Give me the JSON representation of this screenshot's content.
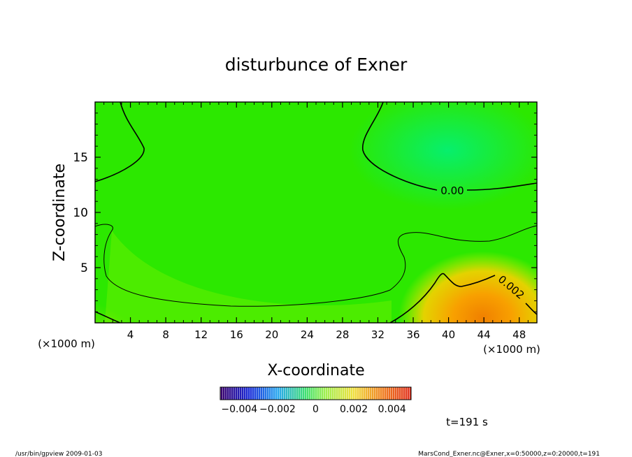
{
  "chart_data": {
    "type": "heatmap",
    "title": "disturbunce of Exner",
    "xlabel": "X-coordinate",
    "ylabel": "Z-coordinate",
    "x_unit": "(×1000 m)",
    "x_unit_right": "(×1000 m)",
    "xlim": [
      0,
      50
    ],
    "ylim": [
      0,
      20
    ],
    "xticks": [
      4,
      8,
      12,
      16,
      20,
      24,
      28,
      32,
      36,
      40,
      44,
      48
    ],
    "yticks": [
      5,
      10,
      15
    ],
    "contour_labels": [
      "0.00",
      "0.002"
    ],
    "colorbar": {
      "range": [
        -0.005,
        0.005
      ],
      "ticks": [
        "−0.004",
        "−0.002",
        "0",
        "0.002",
        "0.004"
      ],
      "tick_values": [
        -0.004,
        -0.002,
        0,
        0.002,
        0.004
      ]
    },
    "time_label": "t=191 s",
    "footer_left": "/usr/bin/gpview   2009-01-03",
    "footer_right": "MarsCond_Exner.nc@Exner,x=0:50000,z=0:20000,t=191"
  }
}
